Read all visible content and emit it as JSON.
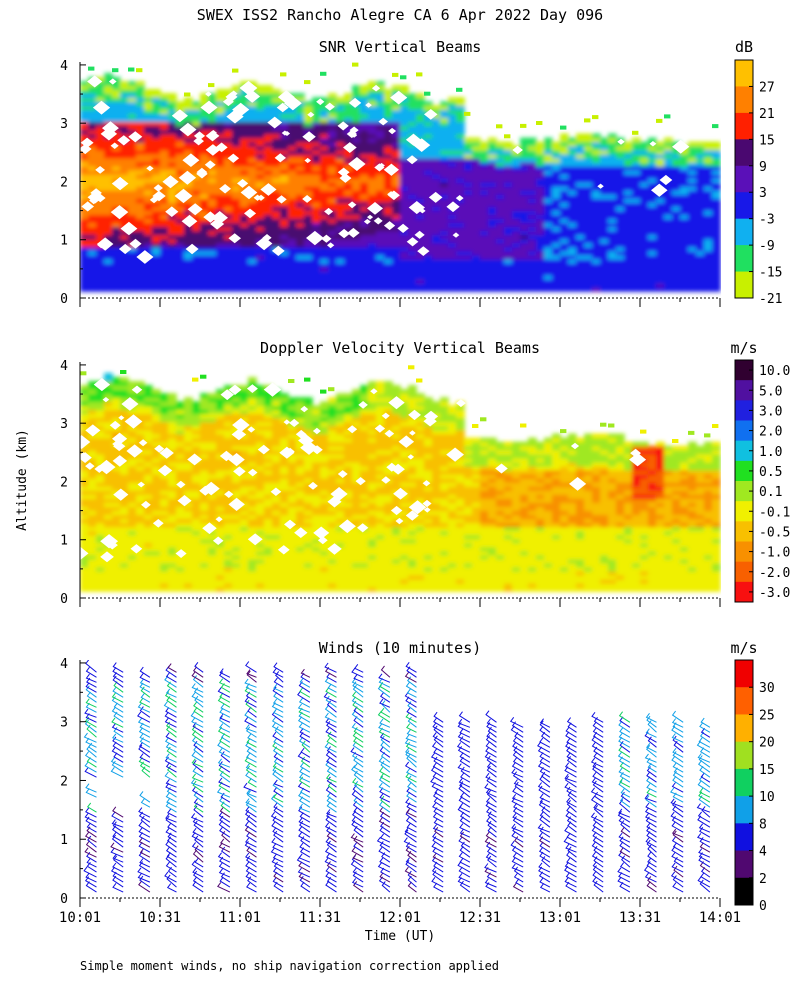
{
  "figure": {
    "title": "SWEX ISS2 Rancho Alegre CA   6 Apr 2022 Day 096",
    "ylabel": "Altitude (km)",
    "xlabel": "Time (UT)",
    "footnote": "Simple moment winds, no ship navigation correction applied"
  },
  "chart_data": [
    {
      "type": "heatmap",
      "title": "SNR Vertical Beams",
      "xlabel": "Time (UT)",
      "ylabel": "Altitude (km)",
      "x_ticks": [
        "10:01",
        "10:31",
        "11:01",
        "11:31",
        "12:01",
        "12:31",
        "13:01",
        "13:31",
        "14:01"
      ],
      "y_ticks": [
        0,
        1,
        2,
        3,
        4
      ],
      "ylim": [
        0,
        4.05
      ],
      "colorbar": {
        "unit": "dB",
        "labels": [
          "27",
          "21",
          "15",
          "9",
          "3",
          "-3",
          "-9",
          "-15",
          "-21"
        ],
        "colors": [
          "#ffc000",
          "#ff8000",
          "#ff2000",
          "#4a0870",
          "#5a10b8",
          "#1818e8",
          "#10b0f0",
          "#20e060",
          "#c8f000"
        ]
      },
      "data_summary": "SNR highest (9 to 27 dB) below ~3 km from 10:01 to ~11:31; moderate (-3 to 9 dB) at 0.5-2.5 km through 14:01; lowest (-21 to -9 dB) near top of returns, which decrease from ~3.5 km to ~2.7 km after 12:31"
    },
    {
      "type": "heatmap",
      "title": "Doppler Velocity Vertical Beams",
      "xlabel": "Time (UT)",
      "ylabel": "Altitude (km)",
      "x_ticks": [
        "10:01",
        "10:31",
        "11:01",
        "11:31",
        "12:01",
        "12:31",
        "13:01",
        "13:31",
        "14:01"
      ],
      "y_ticks": [
        0,
        1,
        2,
        3,
        4
      ],
      "ylim": [
        0,
        4.05
      ],
      "colorbar": {
        "unit": "m/s",
        "labels": [
          "10.0",
          "5.0",
          "3.0",
          "2.0",
          "1.0",
          "0.5",
          "0.1",
          "-0.1",
          "-0.5",
          "-1.0",
          "-2.0",
          "-3.0"
        ],
        "colors": [
          "#300030",
          "#5010a0",
          "#2020e0",
          "#1070f0",
          "#10c0e0",
          "#20e020",
          "#a0e820",
          "#f0f000",
          "#f8c000",
          "#f89000",
          "#f86000",
          "#f81010"
        ]
      },
      "data_summary": "Mostly -0.1 to -1.0 m/s; slight upward (0.1-1.0 m/s) values near cloud tops 3-3.5 km before 11:01; strongest downward (-2 to -3 m/s) near 13:31 at 2-2.5 km"
    },
    {
      "type": "barbs",
      "title": "Winds (10 minutes)",
      "xlabel": "Time (UT)",
      "ylabel": "Altitude (km)",
      "x_ticks": [
        "10:01",
        "10:31",
        "11:01",
        "11:31",
        "12:01",
        "12:31",
        "13:01",
        "13:31",
        "14:01"
      ],
      "y_ticks": [
        0,
        1,
        2,
        3,
        4
      ],
      "ylim": [
        0,
        4.05
      ],
      "colorbar": {
        "unit": "m/s",
        "labels": [
          "30",
          "25",
          "20",
          "15",
          "10",
          "8",
          "4",
          "2",
          "0"
        ],
        "colors": [
          "#f00000",
          "#ff6000",
          "#ffb000",
          "#a0e020",
          "#10d060",
          "#10a0e8",
          "#1010e0",
          "#500870",
          "#000000"
        ]
      },
      "profile_times": [
        "10:06",
        "10:16",
        "10:26",
        "10:36",
        "10:46",
        "10:56",
        "11:06",
        "11:16",
        "11:26",
        "11:36",
        "11:46",
        "11:56",
        "12:06",
        "12:16",
        "12:26",
        "12:36",
        "12:46",
        "12:56",
        "13:06",
        "13:16",
        "13:26",
        "13:36",
        "13:46",
        "13:56"
      ],
      "data_summary": "Winds mostly 2-15 m/s, northwesterly; 8-15 m/s at 1.5-3.5 km before 12:21; weaker 2-8 m/s later; top of winds decreases from ~4 km to ~3 km"
    }
  ]
}
